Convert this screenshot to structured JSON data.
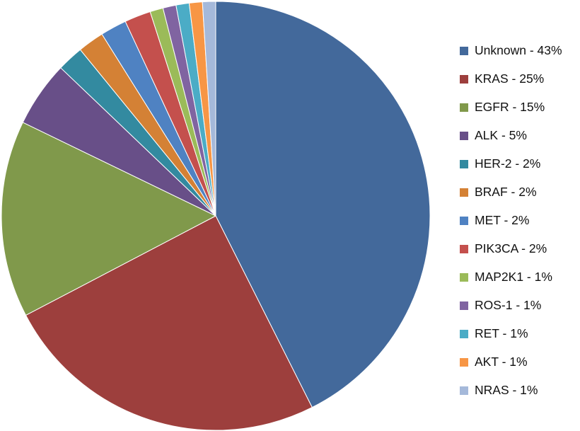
{
  "chart_data": {
    "type": "pie",
    "title": "",
    "start_angle_deg": 0,
    "direction": "clockwise",
    "legend_position": "right",
    "slices": [
      {
        "label": "Unknown",
        "legend_text": "Unknown - 43%",
        "value": 43,
        "color": "#43699b"
      },
      {
        "label": "KRAS",
        "legend_text": "KRAS - 25%",
        "value": 25,
        "color": "#9d3f3d"
      },
      {
        "label": "EGFR",
        "legend_text": "EGFR - 15%",
        "value": 15,
        "color": "#80994b"
      },
      {
        "label": "ALK",
        "legend_text": "ALK - 5%",
        "value": 5,
        "color": "#684f88"
      },
      {
        "label": "HER-2",
        "legend_text": "HER-2 - 2%",
        "value": 2,
        "color": "#338aa0"
      },
      {
        "label": "BRAF",
        "legend_text": "BRAF - 2%",
        "value": 2,
        "color": "#d48135"
      },
      {
        "label": "MET",
        "legend_text": "MET - 2%",
        "value": 2,
        "color": "#4f82c2"
      },
      {
        "label": "PIK3CA",
        "legend_text": "PIK3CA - 2%",
        "value": 2,
        "color": "#c4504d"
      },
      {
        "label": "MAP2K1",
        "legend_text": "MAP2K1 - 1%",
        "value": 1,
        "color": "#9bbb59"
      },
      {
        "label": "ROS-1",
        "legend_text": "ROS-1 - 1%",
        "value": 1,
        "color": "#8064a1"
      },
      {
        "label": "RET",
        "legend_text": "RET - 1%",
        "value": 1,
        "color": "#4bacc6"
      },
      {
        "label": "AKT",
        "legend_text": "AKT - 1%",
        "value": 1,
        "color": "#f79645"
      },
      {
        "label": "NRAS",
        "legend_text": "NRAS - 1%",
        "value": 1,
        "color": "#a5b9da"
      }
    ]
  }
}
